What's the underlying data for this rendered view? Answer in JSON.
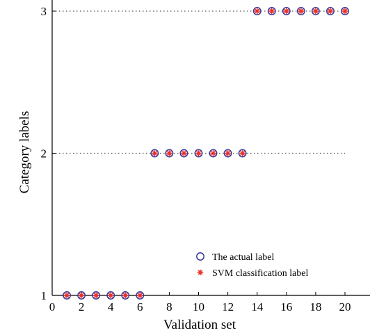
{
  "chart_data": {
    "type": "scatter",
    "xlabel": "Validation set",
    "ylabel": "Category labels",
    "xlim": [
      0,
      20
    ],
    "ylim": [
      1,
      3
    ],
    "xticks": [
      "0",
      "2",
      "4",
      "6",
      "8",
      "10",
      "12",
      "14",
      "16",
      "18",
      "20"
    ],
    "yticks": [
      "1",
      "2",
      "3"
    ],
    "grid": "horizontal dotted lines at y = 2 and y = 3",
    "legend_position": "lower-right",
    "x": [
      1,
      2,
      3,
      4,
      5,
      6,
      7,
      8,
      9,
      10,
      11,
      12,
      13,
      14,
      15,
      16,
      17,
      18,
      19,
      20
    ],
    "series": [
      {
        "name": "The actual label",
        "marker": "circle",
        "color": "#3a3a9a",
        "values": [
          1,
          1,
          1,
          1,
          1,
          1,
          2,
          2,
          2,
          2,
          2,
          2,
          2,
          3,
          3,
          3,
          3,
          3,
          3,
          3
        ]
      },
      {
        "name": "SVM classification label",
        "marker": "asterisk",
        "color": "#e8302a",
        "values": [
          1,
          1,
          1,
          1,
          1,
          1,
          2,
          2,
          2,
          2,
          2,
          2,
          2,
          3,
          3,
          3,
          3,
          3,
          3,
          3
        ]
      }
    ]
  }
}
